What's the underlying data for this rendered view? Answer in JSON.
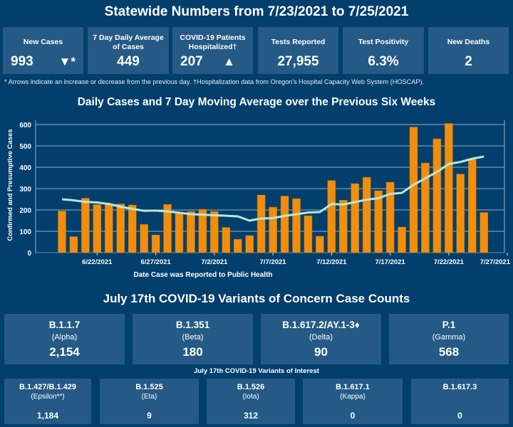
{
  "header": {
    "title": "Statewide Numbers from 7/23/2021 to 7/25/2021"
  },
  "cards": [
    {
      "label": "New Cases",
      "value": "993",
      "arrow": "▼*"
    },
    {
      "label": "7 Day Daily Average of Cases",
      "value": "449"
    },
    {
      "label": "COVID-19 Patients Hospitalized†",
      "value": "207",
      "arrow": "▲"
    },
    {
      "label": "Tests Reported",
      "value": "27,955"
    },
    {
      "label": "Test Positivity",
      "value": "6.3%"
    },
    {
      "label": "New Deaths",
      "value": "2"
    }
  ],
  "footnote": "* Arrows indicate an increase or decrease from the previous day. †Hospitalization data from Oregon's Hospital Capacity Web System (HOSCAP).",
  "chart_data": {
    "type": "bar",
    "title": "Daily Cases and 7 Day Moving Average over the Previous Six Weeks",
    "xlabel": "Date Case was Reported to Public Health",
    "ylabel": "Confirmed and Presumptive Cases",
    "ylim": [
      0,
      620
    ],
    "yticks": [
      0,
      100,
      200,
      300,
      400,
      500,
      600
    ],
    "xtick_labels": [
      "6/22/2021",
      "6/27/2021",
      "7/2/2021",
      "7/7/2021",
      "7/12/2021",
      "7/17/2021",
      "7/22/2021",
      "7/27/2021"
    ],
    "xtick_day_index": [
      3,
      8,
      13,
      18,
      23,
      28,
      33,
      38
    ],
    "start_date": "6/19/2021",
    "series": [
      {
        "name": "Daily Cases",
        "type": "bar",
        "color": "#f28e0c",
        "values": [
          195,
          75,
          255,
          225,
          230,
          228,
          223,
          132,
          83,
          226,
          190,
          193,
          203,
          193,
          118,
          63,
          80,
          270,
          213,
          265,
          253,
          173,
          77,
          338,
          246,
          323,
          353,
          290,
          330,
          120,
          588,
          420,
          533,
          605,
          368,
          437,
          188
        ]
      },
      {
        "name": "7 Day Moving Average",
        "type": "line",
        "color": "#b8e6d8",
        "values": [
          250,
          245,
          238,
          235,
          228,
          215,
          205,
          196,
          197,
          193,
          187,
          180,
          178,
          175,
          173,
          170,
          150,
          160,
          162,
          172,
          180,
          188,
          190,
          228,
          225,
          237,
          248,
          255,
          275,
          280,
          318,
          348,
          378,
          415,
          425,
          440,
          450
        ]
      }
    ]
  },
  "variants": {
    "title": "July 17th  COVID-19 Variants of Concern Case Counts",
    "concern": [
      {
        "name": "B.1.1.7",
        "sub": "(Alpha)",
        "count": "2,154"
      },
      {
        "name": "B.1.351",
        "sub": "(Beta)",
        "count": "180"
      },
      {
        "name": "B.1.617.2/AY.1-3♦",
        "sub": "(Delta)",
        "count": "90"
      },
      {
        "name": "P.1",
        "sub": "(Gamma)",
        "count": "568"
      }
    ],
    "interest_title": "July 17th COVID-19 Variants of Interest",
    "interest": [
      {
        "name": "B.1.427/B.1.429",
        "sub": "(Epsilon**)",
        "count": "1,184"
      },
      {
        "name": "B.1.525",
        "sub": "(Eta)",
        "count": "9"
      },
      {
        "name": "B.1.526",
        "sub": "(Iota)",
        "count": "312"
      },
      {
        "name": "B.1.617.1",
        "sub": "(Kappa)",
        "count": "0"
      },
      {
        "name": "B.1.617.3",
        "count": "0"
      }
    ]
  }
}
